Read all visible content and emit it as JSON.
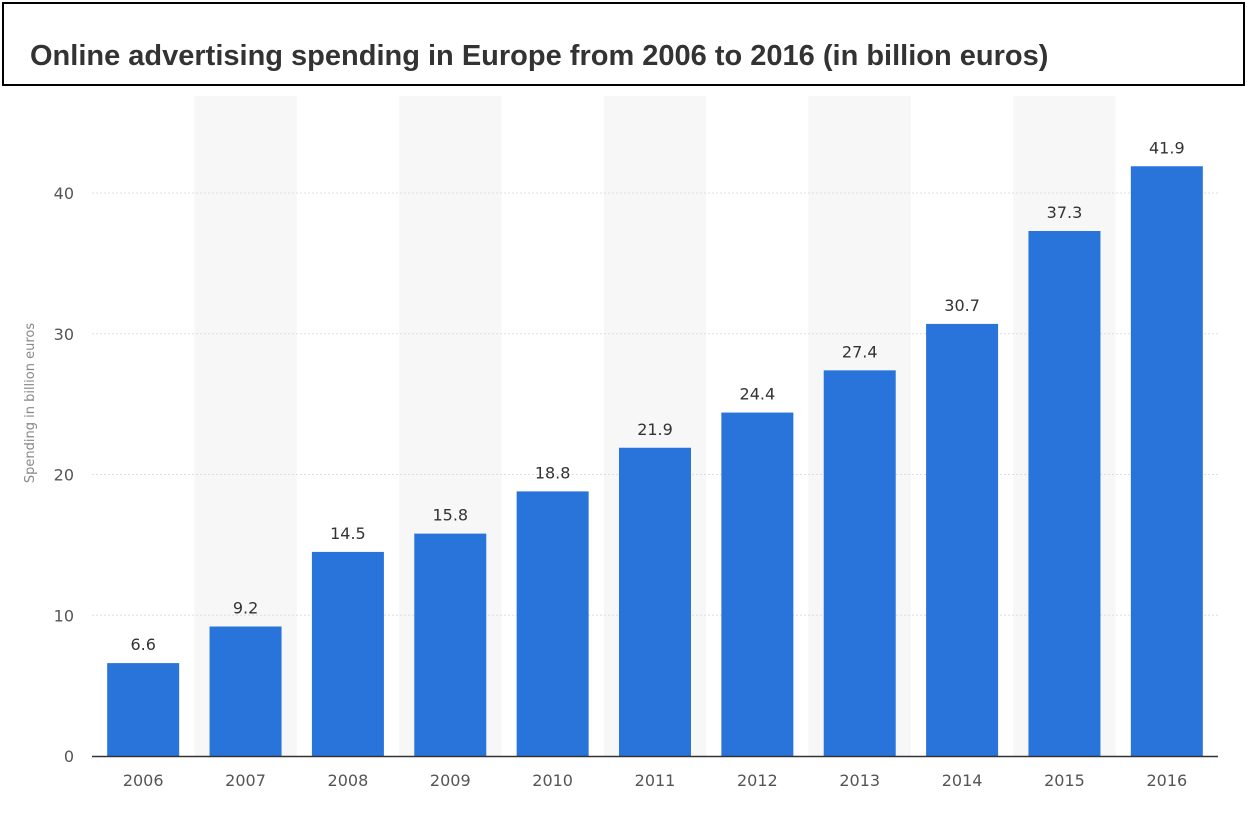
{
  "chart_data": {
    "type": "bar",
    "title": "Online advertising spending in Europe from 2006 to 2016 (in billion euros)",
    "xlabel": "",
    "ylabel": "Spending in billion euros",
    "categories": [
      "2006",
      "2007",
      "2008",
      "2009",
      "2010",
      "2011",
      "2012",
      "2013",
      "2014",
      "2015",
      "2016"
    ],
    "values": [
      6.6,
      9.2,
      14.5,
      15.8,
      18.8,
      21.9,
      24.4,
      27.4,
      30.7,
      37.3,
      41.9
    ],
    "value_labels": [
      "6.6",
      "9.2",
      "14.5",
      "15.8",
      "18.8",
      "21.9",
      "24.4",
      "27.4",
      "30.7",
      "37.3",
      "41.9"
    ],
    "ylim": [
      0,
      45
    ],
    "yticks": [
      "0",
      "10",
      "20",
      "30",
      "40"
    ],
    "grid": true,
    "colors": {
      "bar": "#2874da",
      "band": "#f7f7f7",
      "grid": "#dddddd",
      "axis": "#333333"
    }
  }
}
